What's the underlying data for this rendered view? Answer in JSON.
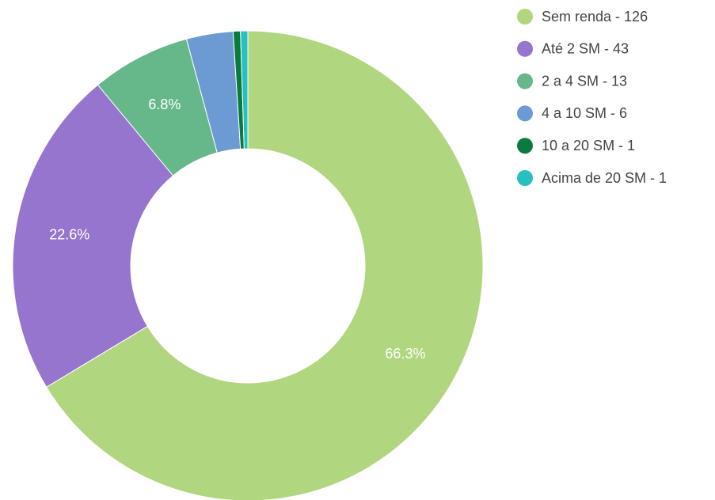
{
  "chart_data": {
    "type": "donut",
    "categories": [
      "Sem renda - 126",
      "Até 2 SM - 43",
      "2 a 4 SM - 13",
      "4 a 10 SM - 6",
      "10 a 20 SM - 1",
      "Acima de 20 SM - 1"
    ],
    "values": [
      66.3,
      22.6,
      6.8,
      3.2,
      0.5,
      0.5
    ],
    "value_labels": [
      "66.3%",
      "22.6%",
      "6.8%",
      null,
      null,
      null
    ],
    "colors": [
      "#b0d67f",
      "#9575cd",
      "#66b88a",
      "#6b9bd2",
      "#0b7a3e",
      "#26c0c0"
    ],
    "legend": "right"
  }
}
